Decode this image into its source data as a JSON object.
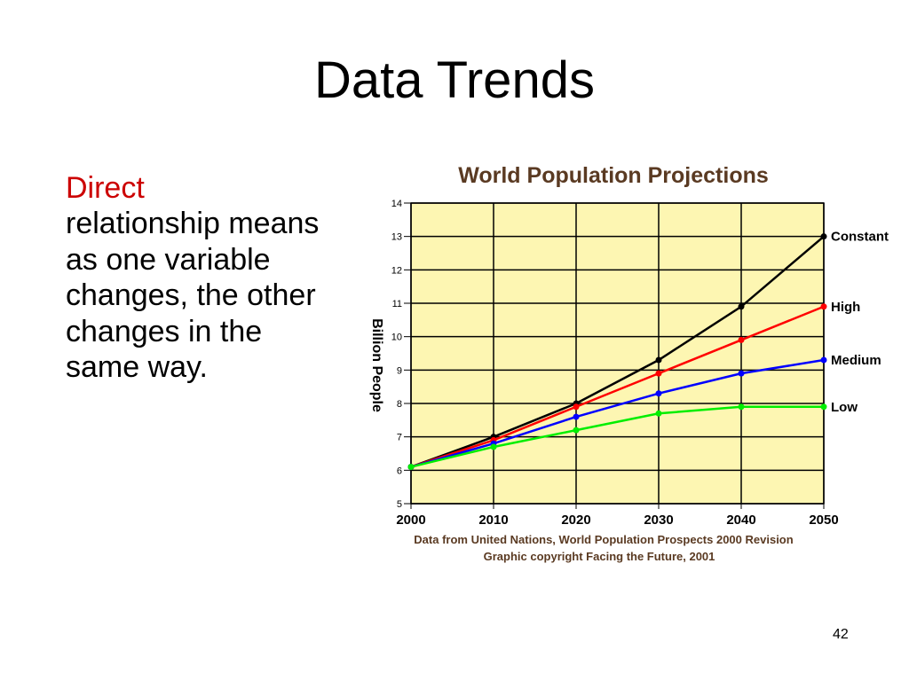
{
  "slide": {
    "title": "Data Trends",
    "text_highlight": "Direct",
    "text_rest": "relationship means as one variable changes, the other changes in the same way.",
    "page_number": "42"
  },
  "colors": {
    "highlight": "#cc0000",
    "plot_background": "#fdf6b2"
  },
  "chart_data": {
    "type": "line",
    "title": "World Population Projections",
    "ylabel": "Billion People",
    "xlabel": "",
    "x": [
      2000,
      2010,
      2020,
      2030,
      2040,
      2050
    ],
    "xlim": [
      2000,
      2050
    ],
    "ylim": [
      5,
      14
    ],
    "yticks": [
      5,
      6,
      7,
      8,
      9,
      10,
      11,
      12,
      13,
      14
    ],
    "grid": true,
    "legend": "labels at line ends (right)",
    "series": [
      {
        "name": "Constant",
        "color": "#000000",
        "values": [
          6.1,
          7.0,
          8.0,
          9.3,
          10.9,
          13.0
        ]
      },
      {
        "name": "High",
        "color": "#ff0000",
        "values": [
          6.1,
          6.9,
          7.9,
          8.9,
          9.9,
          10.9
        ]
      },
      {
        "name": "Medium",
        "color": "#0000ff",
        "values": [
          6.1,
          6.8,
          7.6,
          8.3,
          8.9,
          9.3
        ]
      },
      {
        "name": "Low",
        "color": "#00ee00",
        "values": [
          6.1,
          6.7,
          7.2,
          7.7,
          7.9,
          7.9
        ]
      }
    ],
    "notes": [
      "Data from United Nations, World Population Prospects 2000 Revision",
      "Graphic copyright Facing the Future, 2001"
    ]
  }
}
